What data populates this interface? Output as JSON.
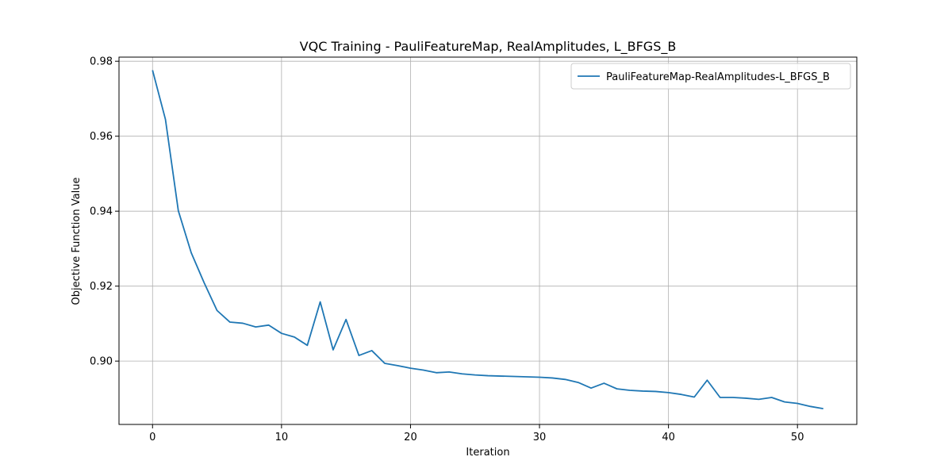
{
  "chart_data": {
    "type": "line",
    "title": "VQC Training - PauliFeatureMap, RealAmplitudes, L_BFGS_B",
    "xlabel": "Iteration",
    "ylabel": "Objective Function Value",
    "xlim": [
      -2.6,
      54.6
    ],
    "ylim": [
      0.8831,
      0.9811
    ],
    "xticks": [
      0,
      10,
      20,
      30,
      40,
      50
    ],
    "yticks": [
      0.9,
      0.92,
      0.94,
      0.96,
      0.98
    ],
    "ytick_labels": [
      "0.90",
      "0.92",
      "0.94",
      "0.96",
      "0.98"
    ],
    "grid": true,
    "legend_position": "top-right",
    "series": [
      {
        "name": "PauliFeatureMap-RealAmplitudes-L_BFGS_B",
        "color": "#1f77b4",
        "x": [
          0,
          1,
          2,
          3,
          4,
          5,
          6,
          7,
          8,
          9,
          10,
          11,
          12,
          13,
          14,
          15,
          16,
          17,
          18,
          19,
          20,
          21,
          22,
          23,
          24,
          25,
          26,
          27,
          28,
          29,
          30,
          31,
          32,
          33,
          34,
          35,
          36,
          37,
          38,
          39,
          40,
          41,
          42,
          43,
          44,
          45,
          46,
          47,
          48,
          49,
          50,
          51,
          52
        ],
        "y": [
          0.9776,
          0.9645,
          0.9401,
          0.9289,
          0.9209,
          0.9135,
          0.9104,
          0.9101,
          0.9091,
          0.9096,
          0.9074,
          0.9064,
          0.9042,
          0.9158,
          0.903,
          0.9111,
          0.9015,
          0.9028,
          0.8994,
          0.8988,
          0.8981,
          0.8976,
          0.8969,
          0.8971,
          0.8966,
          0.8963,
          0.8961,
          0.896,
          0.8959,
          0.8958,
          0.8957,
          0.8955,
          0.8951,
          0.8943,
          0.8928,
          0.8941,
          0.8926,
          0.8922,
          0.892,
          0.8919,
          0.8916,
          0.8911,
          0.8904,
          0.8949,
          0.8903,
          0.8903,
          0.8901,
          0.8898,
          0.8903,
          0.8891,
          0.8887,
          0.8879,
          0.8873
        ]
      }
    ]
  }
}
